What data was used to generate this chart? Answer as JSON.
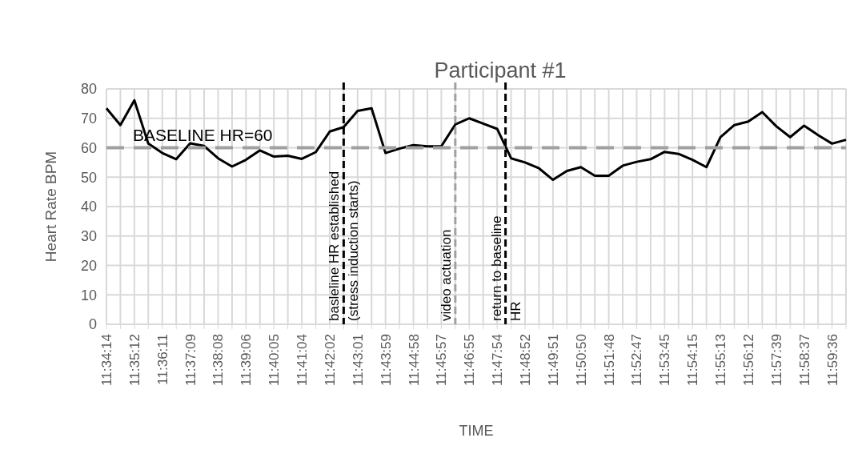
{
  "chart_data": {
    "type": "line",
    "title": "Participant #1",
    "xlabel": "TIME",
    "ylabel": "Heart Rate BPM",
    "categories": [
      "11:34:14",
      null,
      "11:35:12",
      null,
      "11:36:11",
      null,
      "11:37:09",
      null,
      "11:38:08",
      null,
      "11:39:06",
      null,
      "11:40:05",
      null,
      "11:41:04",
      null,
      "11:42:02",
      null,
      "11:43:01",
      null,
      "11:43:59",
      null,
      "11:44:58",
      null,
      "11:45:57",
      null,
      "11:46:55",
      null,
      "11:47:54",
      null,
      "11:48:52",
      null,
      "11:49:51",
      null,
      "11:50:50",
      null,
      "11:51:48",
      null,
      "11:52:47",
      null,
      "11:53:45",
      null,
      "11:54:15",
      null,
      "11:55:13",
      null,
      "11:56:12",
      null,
      "11:57:39",
      null,
      "11:58:37",
      null,
      "11:59:36",
      null
    ],
    "series": [
      {
        "color": "#000000",
        "values": [
          73.4,
          67.7,
          76.1,
          61.4,
          58.2,
          56.1,
          61.5,
          60.6,
          56.4,
          53.6,
          55.9,
          59.1,
          57,
          57.3,
          56.2,
          58.5,
          65.5,
          67,
          72.5,
          73.4,
          58.2,
          59.7,
          60.9,
          60.5,
          60.5,
          67.9,
          70,
          68.2,
          66.4,
          56.4,
          55,
          53,
          49.1,
          52.1,
          53.4,
          50.5,
          50.5,
          53.9,
          55.2,
          56.1,
          58.6,
          57.9,
          55.9,
          53.4,
          63.6,
          67.7,
          68.9,
          72.1,
          67.3,
          63.6,
          67.5,
          64.3,
          61.4,
          62.7
        ]
      }
    ],
    "ylim": [
      0,
      80
    ],
    "yticks": [
      0,
      10,
      20,
      30,
      40,
      50,
      60,
      70,
      80
    ],
    "grid": true,
    "marker": "none",
    "line_style": "solid",
    "ref_lines": [
      {
        "axis": "y",
        "value": 60,
        "label": "BASELINE HR=60",
        "color": "#a0a0a0",
        "line_style": "dashed"
      }
    ],
    "annotations": [
      "basleline HR established\n(stress induction starts)",
      "video actuation",
      "return to baseline\nHR"
    ]
  }
}
